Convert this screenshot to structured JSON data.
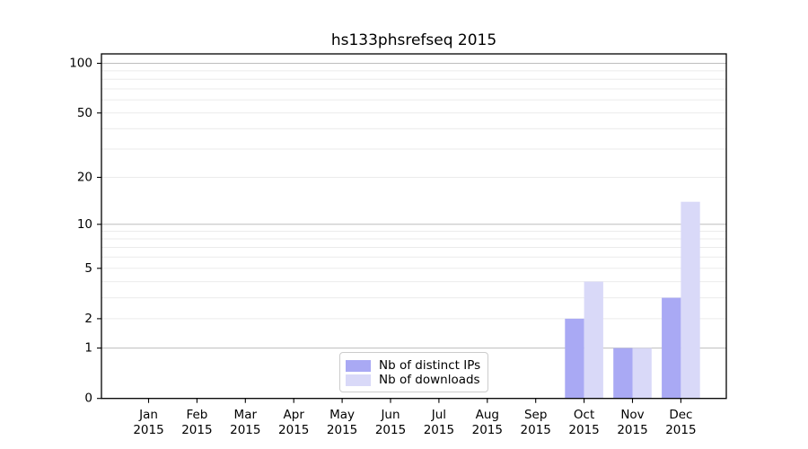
{
  "figure": {
    "background": "#ffffff",
    "frame_color": "#000000",
    "grid_major_color": "#bdbdbd",
    "grid_minor_color": "#ebebeb"
  },
  "chart_data": {
    "type": "bar",
    "title": "hs133phsrefseq 2015",
    "categories": [
      {
        "month": "Jan",
        "year": "2015"
      },
      {
        "month": "Feb",
        "year": "2015"
      },
      {
        "month": "Mar",
        "year": "2015"
      },
      {
        "month": "Apr",
        "year": "2015"
      },
      {
        "month": "May",
        "year": "2015"
      },
      {
        "month": "Jun",
        "year": "2015"
      },
      {
        "month": "Jul",
        "year": "2015"
      },
      {
        "month": "Aug",
        "year": "2015"
      },
      {
        "month": "Sep",
        "year": "2015"
      },
      {
        "month": "Oct",
        "year": "2015"
      },
      {
        "month": "Nov",
        "year": "2015"
      },
      {
        "month": "Dec",
        "year": "2015"
      }
    ],
    "series": [
      {
        "name": "Nb of distinct IPs",
        "color": "#a9a9f4",
        "values": [
          0,
          0,
          0,
          0,
          0,
          0,
          0,
          0,
          0,
          2,
          1,
          3
        ]
      },
      {
        "name": "Nb of downloads",
        "color": "#d9d9f8",
        "values": [
          0,
          0,
          0,
          0,
          0,
          0,
          0,
          0,
          0,
          4,
          1,
          14
        ]
      }
    ],
    "y_scale": "log1p",
    "y_ticks": [
      0,
      1,
      2,
      5,
      10,
      20,
      50,
      100
    ],
    "grid_major_values": [
      1,
      10,
      100
    ],
    "grid_minor_values": [
      2,
      3,
      4,
      5,
      6,
      7,
      8,
      9,
      20,
      30,
      40,
      50,
      60,
      70,
      80,
      90
    ],
    "ylim": [
      0,
      112
    ],
    "xlabel": "",
    "ylabel": "",
    "legend_position": "lower center"
  }
}
